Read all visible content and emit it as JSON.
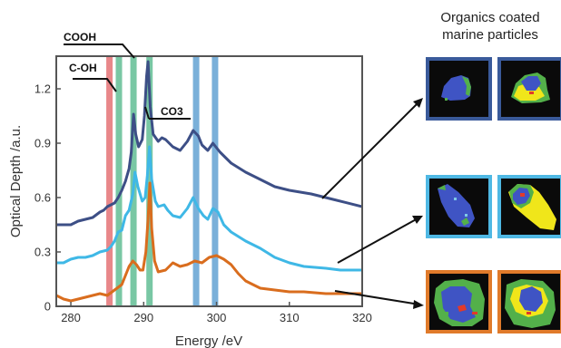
{
  "chart_data": {
    "type": "line",
    "xlabel": "Energy /eV",
    "ylabel": "Optical Depth /a.u.",
    "xlim": [
      278,
      320
    ],
    "ylim": [
      0,
      1.38
    ],
    "xticks": [
      "280",
      "290",
      "300",
      "310",
      "320"
    ],
    "yticks": [
      "0",
      "0.3",
      "0.6",
      "0.9",
      "1.2"
    ],
    "grid": false,
    "series": [
      {
        "color": "#3d4f86",
        "points": [
          [
            278,
            0.45
          ],
          [
            280,
            0.45
          ],
          [
            281,
            0.47
          ],
          [
            282,
            0.48
          ],
          [
            283,
            0.49
          ],
          [
            284,
            0.52
          ],
          [
            284.5,
            0.53
          ],
          [
            285,
            0.55
          ],
          [
            285.5,
            0.56
          ],
          [
            286,
            0.57
          ],
          [
            286.5,
            0.6
          ],
          [
            287,
            0.64
          ],
          [
            287.5,
            0.69
          ],
          [
            288,
            0.76
          ],
          [
            288.3,
            0.85
          ],
          [
            288.6,
            1.06
          ],
          [
            288.9,
            0.95
          ],
          [
            289.3,
            0.88
          ],
          [
            289.8,
            0.92
          ],
          [
            290.1,
            1.05
          ],
          [
            290.4,
            1.27
          ],
          [
            290.6,
            1.35
          ],
          [
            290.9,
            1.1
          ],
          [
            291.3,
            0.95
          ],
          [
            292,
            0.91
          ],
          [
            292.5,
            0.93
          ],
          [
            293,
            0.92
          ],
          [
            294,
            0.88
          ],
          [
            295,
            0.86
          ],
          [
            296,
            0.91
          ],
          [
            296.8,
            0.97
          ],
          [
            297.5,
            0.94
          ],
          [
            298,
            0.89
          ],
          [
            298.8,
            0.86
          ],
          [
            299.5,
            0.9
          ],
          [
            300.5,
            0.85
          ],
          [
            302,
            0.79
          ],
          [
            304,
            0.74
          ],
          [
            306,
            0.7
          ],
          [
            308,
            0.66
          ],
          [
            310,
            0.64
          ],
          [
            313,
            0.62
          ],
          [
            316,
            0.59
          ],
          [
            320,
            0.55
          ]
        ]
      },
      {
        "color": "#3fb8e6",
        "points": [
          [
            278,
            0.24
          ],
          [
            279,
            0.24
          ],
          [
            280,
            0.26
          ],
          [
            281,
            0.27
          ],
          [
            282,
            0.27
          ],
          [
            283,
            0.28
          ],
          [
            284,
            0.3
          ],
          [
            285,
            0.31
          ],
          [
            285.5,
            0.33
          ],
          [
            286,
            0.36
          ],
          [
            286.5,
            0.41
          ],
          [
            287,
            0.42
          ],
          [
            287.5,
            0.5
          ],
          [
            288,
            0.53
          ],
          [
            288.5,
            0.62
          ],
          [
            288.8,
            0.74
          ],
          [
            289.2,
            0.66
          ],
          [
            289.8,
            0.58
          ],
          [
            290.2,
            0.6
          ],
          [
            290.5,
            0.72
          ],
          [
            290.8,
            0.88
          ],
          [
            291.1,
            0.7
          ],
          [
            291.6,
            0.58
          ],
          [
            292,
            0.55
          ],
          [
            292.8,
            0.56
          ],
          [
            293.3,
            0.53
          ],
          [
            294,
            0.5
          ],
          [
            295,
            0.49
          ],
          [
            296,
            0.54
          ],
          [
            296.8,
            0.6
          ],
          [
            297.5,
            0.54
          ],
          [
            298.2,
            0.5
          ],
          [
            298.8,
            0.48
          ],
          [
            299.5,
            0.54
          ],
          [
            300.2,
            0.52
          ],
          [
            301,
            0.45
          ],
          [
            302,
            0.41
          ],
          [
            304,
            0.36
          ],
          [
            306,
            0.32
          ],
          [
            308,
            0.27
          ],
          [
            310,
            0.24
          ],
          [
            312,
            0.22
          ],
          [
            315,
            0.21
          ],
          [
            317,
            0.2
          ],
          [
            320,
            0.2
          ]
        ]
      },
      {
        "color": "#d96d1e",
        "points": [
          [
            278,
            0.06
          ],
          [
            279,
            0.04
          ],
          [
            280,
            0.03
          ],
          [
            281,
            0.04
          ],
          [
            282,
            0.05
          ],
          [
            283,
            0.06
          ],
          [
            284,
            0.07
          ],
          [
            285,
            0.06
          ],
          [
            286,
            0.09
          ],
          [
            287,
            0.12
          ],
          [
            287.5,
            0.17
          ],
          [
            288,
            0.22
          ],
          [
            288.5,
            0.25
          ],
          [
            289,
            0.23
          ],
          [
            289.5,
            0.2
          ],
          [
            289.9,
            0.2
          ],
          [
            290.3,
            0.3
          ],
          [
            290.6,
            0.48
          ],
          [
            290.85,
            0.68
          ],
          [
            291.1,
            0.43
          ],
          [
            291.5,
            0.25
          ],
          [
            292,
            0.19
          ],
          [
            293,
            0.2
          ],
          [
            294,
            0.24
          ],
          [
            295,
            0.22
          ],
          [
            296,
            0.23
          ],
          [
            297,
            0.25
          ],
          [
            298,
            0.24
          ],
          [
            299,
            0.27
          ],
          [
            300,
            0.28
          ],
          [
            301,
            0.26
          ],
          [
            302,
            0.23
          ],
          [
            303,
            0.18
          ],
          [
            304,
            0.14
          ],
          [
            305,
            0.12
          ],
          [
            306,
            0.1
          ],
          [
            308,
            0.09
          ],
          [
            310,
            0.08
          ],
          [
            312,
            0.08
          ],
          [
            315,
            0.07
          ],
          [
            318,
            0.07
          ],
          [
            320,
            0.07
          ]
        ]
      }
    ],
    "bands": [
      {
        "x": 285.3,
        "color": "#e8878a"
      },
      {
        "x": 286.6,
        "color": "#79c7a4"
      },
      {
        "x": 288.6,
        "color": "#79c7a4"
      },
      {
        "x": 290.8,
        "color": "#79c7a4"
      },
      {
        "x": 297.2,
        "color": "#7ab0d9"
      },
      {
        "x": 299.8,
        "color": "#7ab0d9"
      }
    ],
    "annotations": [
      "COOH",
      "C-OH",
      "CO3"
    ]
  },
  "panel": {
    "title_line1": "Organics coated",
    "title_line2": "marine particles",
    "groups": [
      {
        "border": "#3a5a9a"
      },
      {
        "border": "#4fb8e4"
      },
      {
        "border": "#e07a2a"
      }
    ]
  }
}
